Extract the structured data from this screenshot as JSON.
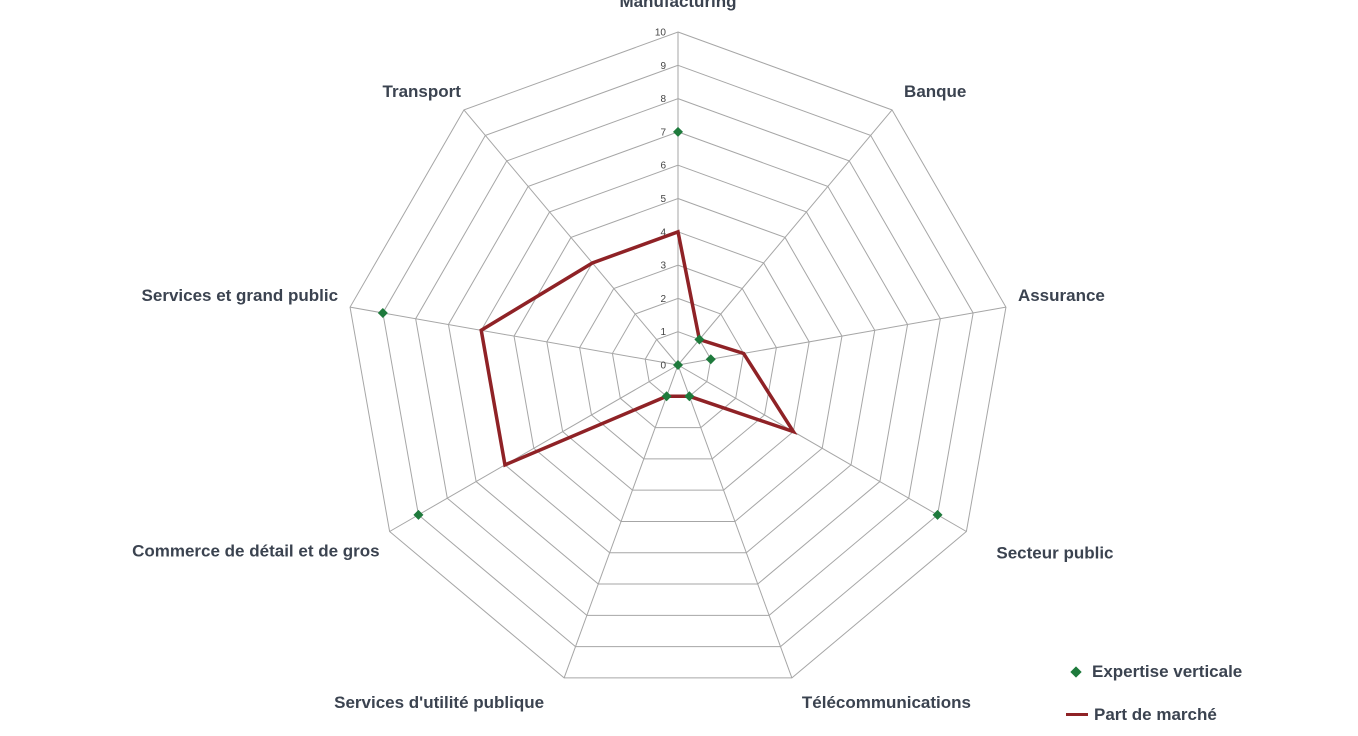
{
  "chart_data": {
    "type": "radar",
    "categories": [
      "Manufacturing",
      "Banque",
      "Assurance",
      "Secteur public",
      "Télécommunications",
      "Services d'utilité publique",
      "Commerce de détail et de gros",
      "Services et grand public",
      "Transport"
    ],
    "rlim": [
      0,
      10
    ],
    "ticks": [
      "0",
      "1",
      "2",
      "3",
      "4",
      "5",
      "6",
      "7",
      "8",
      "9",
      "10"
    ],
    "series": [
      {
        "name": "Expertise verticale",
        "style": "markers",
        "color": "#1e7a3c",
        "values": [
          7,
          1,
          1,
          9,
          1,
          1,
          9,
          9,
          0
        ]
      },
      {
        "name": "Part de marché",
        "style": "line",
        "color": "#8f2226",
        "values": [
          4,
          1,
          2,
          4,
          1,
          1,
          6,
          6,
          4
        ]
      }
    ],
    "grid": true,
    "legend_position": "bottom-right"
  }
}
